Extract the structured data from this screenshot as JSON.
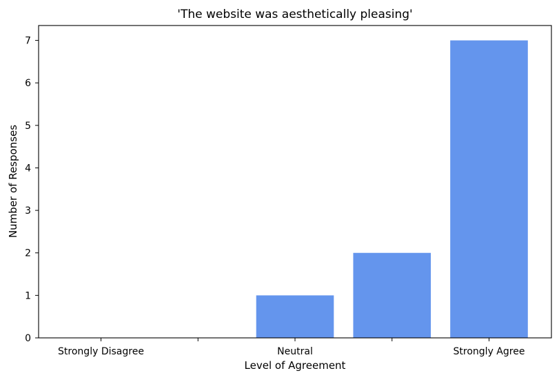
{
  "chart_data": {
    "type": "bar",
    "title": "'The website was aesthetically pleasing'",
    "xlabel": "Level of Agreement",
    "ylabel": "Number of Responses",
    "categories": [
      "Strongly Disagree",
      "",
      "Neutral",
      "",
      "Strongly Agree"
    ],
    "values": [
      0,
      0,
      1,
      2,
      7
    ],
    "ylim": [
      0,
      7.35
    ],
    "yticks": [
      0,
      1,
      2,
      3,
      4,
      5,
      6,
      7
    ],
    "bar_color": "#6495ED",
    "grid": false,
    "legend": "none"
  }
}
